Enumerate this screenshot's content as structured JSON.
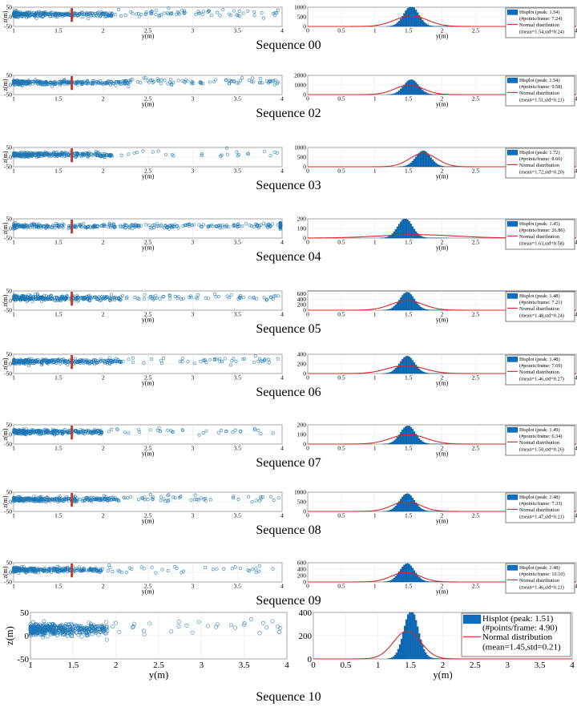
{
  "scatter_axes": {
    "xlabel": "y(m)",
    "ylabel": "z(m)",
    "xticks": [
      "1",
      "1.5",
      "2",
      "2.5",
      "3",
      "3.5",
      "4"
    ],
    "yticks": [
      "50",
      "0",
      "-50"
    ],
    "xlim": [
      1,
      4
    ],
    "ylim": [
      -50,
      50
    ],
    "marker_color": "#1f77b4",
    "threshold_line_color": "#c0392b",
    "threshold_y": 1.65
  },
  "hist_axes": {
    "xlabel": "y(m)",
    "xticks": [
      "0",
      "0.5",
      "1",
      "1.5",
      "2",
      "2.5",
      "3",
      "3.5",
      "4"
    ],
    "xlim": [
      0,
      4
    ],
    "bar_color": "#0e6fc0",
    "curve_color": "#d62728"
  },
  "legend_entries": {
    "curve_label": "Normal distribution"
  },
  "chart_data": [
    {
      "type": "scatter",
      "title": "Sequence 00",
      "hist_yticks": [
        "1000",
        "500",
        "0"
      ],
      "hist_ymax": 1000,
      "peak_label": "Hisplot (peak: 1.54)",
      "points_label": "(#points/frame: 7.24)",
      "normal_label": "(mean=1.54,std=0.24)",
      "peak": 1.54,
      "hist_peak_count": 1050,
      "mean": 1.54,
      "std": 0.24,
      "curve_peak": 560,
      "dense_until": 2.1,
      "sparse_count": 70
    },
    {
      "type": "scatter",
      "title": "Sequence 02",
      "hist_yticks": [
        "2000",
        "1000",
        "0"
      ],
      "hist_ymax": 2000,
      "peak_label": "Hisplot (peak: 1.54)",
      "points_label": "(#points/frame: 9.58)",
      "normal_label": "(mean=1.51,std=0.21)",
      "peak": 1.54,
      "hist_peak_count": 1550,
      "mean": 1.51,
      "std": 0.21,
      "curve_peak": 1000,
      "dense_until": 2.3,
      "sparse_count": 75
    },
    {
      "type": "scatter",
      "title": "Sequence 03",
      "hist_yticks": [
        "1000",
        "500",
        "0"
      ],
      "hist_ymax": 1000,
      "peak_label": "Hisplot (peak: 1.72)",
      "points_label": "(#points/frame: 8.66)",
      "normal_label": "(mean=1.72,std=0.20)",
      "peak": 1.72,
      "hist_peak_count": 820,
      "mean": 1.72,
      "std": 0.2,
      "curve_peak": 700,
      "dense_until": 2.1,
      "sparse_count": 25
    },
    {
      "type": "scatter",
      "title": "Sequence 04",
      "hist_yticks": [
        "200",
        "100",
        "0"
      ],
      "hist_ymax": 200,
      "peak_label": "Hisplot (peak: 1.45)",
      "points_label": "(#points/frame: 26.86)",
      "normal_label": "(mean=1.63,std=0.58)",
      "peak": 1.45,
      "hist_peak_count": 200,
      "mean": 1.63,
      "std": 0.58,
      "curve_peak": 35,
      "dense_until": 4.0,
      "sparse_count": 60
    },
    {
      "type": "scatter",
      "title": "Sequence 05",
      "hist_yticks": [
        "600",
        "400",
        "200",
        "0"
      ],
      "hist_ymax": 700,
      "peak_label": "Hisplot (peak: 1.48)",
      "points_label": "(#points/frame: 7.21)",
      "normal_label": "(mean=1.48,std=0.24)",
      "peak": 1.48,
      "hist_peak_count": 650,
      "mean": 1.48,
      "std": 0.24,
      "curve_peak": 350,
      "dense_until": 2.2,
      "sparse_count": 60
    },
    {
      "type": "scatter",
      "title": "Sequence 06",
      "hist_yticks": [
        "400",
        "200",
        "0"
      ],
      "hist_ymax": 400,
      "peak_label": "Hisplot (peak: 1.48)",
      "points_label": "(#points/frame: 7.69)",
      "normal_label": "(mean=1.46,std=0.27)",
      "peak": 1.48,
      "hist_peak_count": 360,
      "mean": 1.46,
      "std": 0.27,
      "curve_peak": 170,
      "dense_until": 2.2,
      "sparse_count": 45
    },
    {
      "type": "scatter",
      "title": "Sequence 07",
      "hist_yticks": [
        "200",
        "100",
        "0"
      ],
      "hist_ymax": 200,
      "peak_label": "Hisplot (peak: 1.49)",
      "points_label": "(#points/frame: 6.34)",
      "normal_label": "(mean=1.50,std=0.26)",
      "peak": 1.49,
      "hist_peak_count": 190,
      "mean": 1.5,
      "std": 0.26,
      "curve_peak": 100,
      "dense_until": 2.0,
      "sparse_count": 35
    },
    {
      "type": "scatter",
      "title": "Sequence 08",
      "hist_yticks": [
        "1000",
        "500",
        "0"
      ],
      "hist_ymax": 1000,
      "peak_label": "Hisplot (peak: 1.48)",
      "points_label": "(#points/frame: 7.33)",
      "normal_label": "(mean=1.47,std=0.21)",
      "peak": 1.48,
      "hist_peak_count": 920,
      "mean": 1.47,
      "std": 0.21,
      "curve_peak": 520,
      "dense_until": 2.2,
      "sparse_count": 50
    },
    {
      "type": "scatter",
      "title": "Sequence 09",
      "hist_yticks": [
        "600",
        "400",
        "200",
        "0"
      ],
      "hist_ymax": 600,
      "peak_label": "Hisplot (peak: 1.48)",
      "points_label": "(#points/frame: 10.10)",
      "normal_label": "(mean=1.46,std=0.21)",
      "peak": 1.48,
      "hist_peak_count": 570,
      "mean": 1.46,
      "std": 0.21,
      "curve_peak": 300,
      "dense_until": 2.0,
      "sparse_count": 35
    },
    {
      "type": "scatter",
      "title": "Sequence 10",
      "hist_yticks": [
        "400",
        "200",
        "0"
      ],
      "hist_ymax": 400,
      "peak_label": "Hisplot (peak: 1.51)",
      "points_label": "(#points/frame: 4.90)",
      "normal_label": "(mean=1.45,std=0.21)",
      "peak": 1.51,
      "hist_peak_count": 420,
      "mean": 1.45,
      "std": 0.21,
      "curve_peak": 240,
      "dense_until": 1.9,
      "sparse_count": 30
    }
  ]
}
